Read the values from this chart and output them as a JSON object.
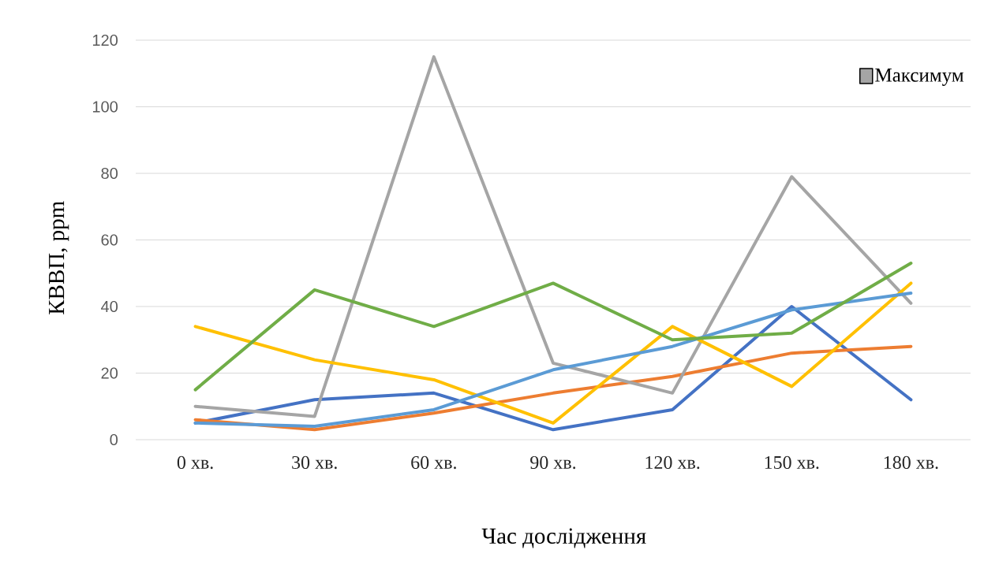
{
  "chart_data": {
    "type": "line",
    "xlabel": "Час дослідження",
    "ylabel": "КВВП, ppm",
    "categories": [
      "0 хв.",
      "30 хв.",
      "60 хв.",
      "90 хв.",
      "120 хв.",
      "150 хв.",
      "180 хв."
    ],
    "series": [
      {
        "color": "#4472c4",
        "values": [
          5,
          12,
          14,
          3,
          9,
          40,
          12
        ]
      },
      {
        "color": "#ed7d31",
        "values": [
          6,
          3,
          8,
          14,
          19,
          26,
          28
        ]
      },
      {
        "name": "Максимум",
        "color": "#a5a5a5",
        "values": [
          10,
          7,
          115,
          23,
          14,
          79,
          41
        ]
      },
      {
        "color": "#ffc000",
        "values": [
          34,
          24,
          18,
          5,
          34,
          16,
          47
        ]
      },
      {
        "color": "#5b9bd5",
        "values": [
          5,
          4,
          9,
          21,
          28,
          39,
          44
        ]
      },
      {
        "color": "#70ad47",
        "values": [
          15,
          45,
          34,
          47,
          30,
          32,
          53
        ]
      }
    ],
    "ylim": [
      0,
      120
    ],
    "yticks": [
      0,
      20,
      40,
      60,
      80,
      100,
      120
    ],
    "grid": "y",
    "legend": "top right",
    "line_style": "solid"
  }
}
